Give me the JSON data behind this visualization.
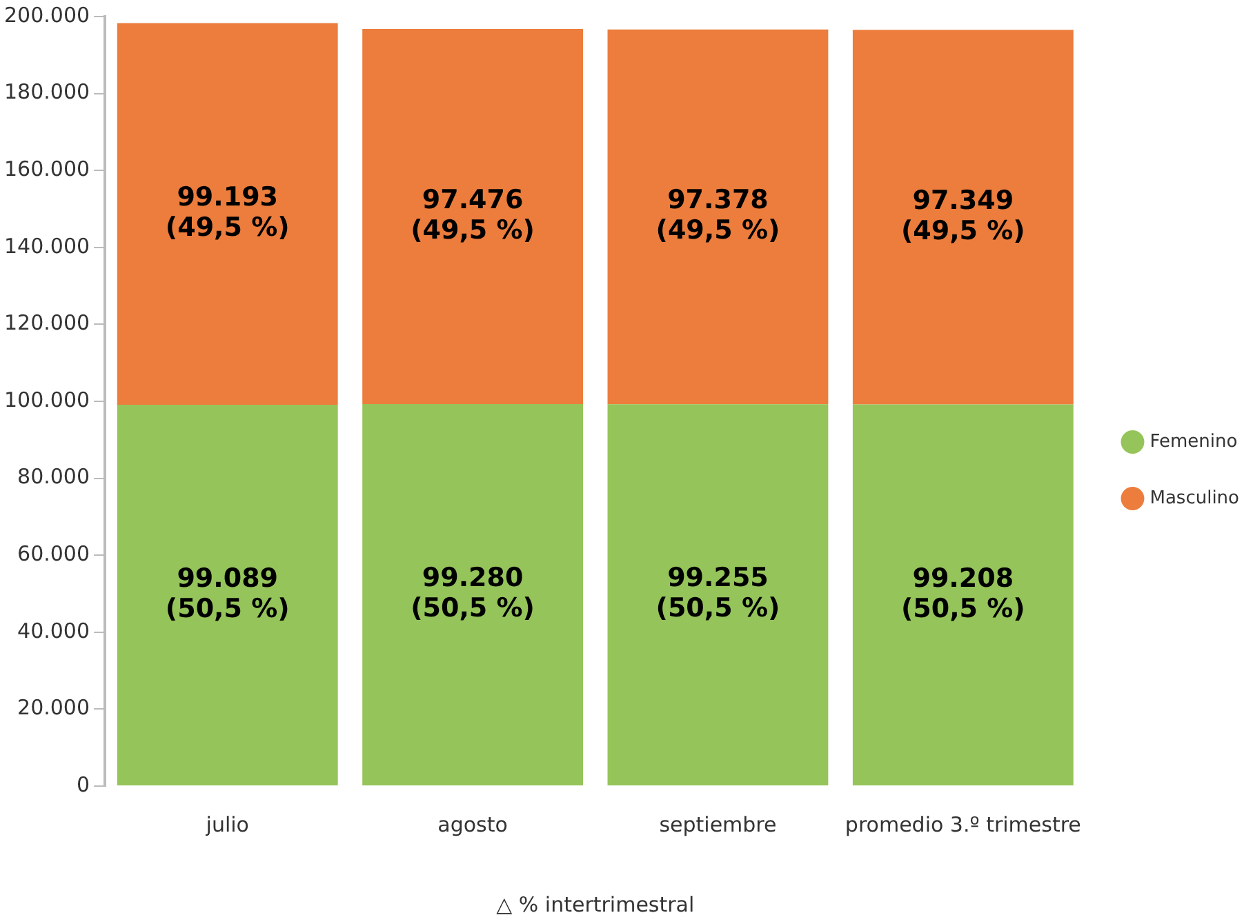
{
  "chart_data": {
    "type": "bar",
    "stacked": true,
    "xlabel": "△ % intertrimestral",
    "categories": [
      "julio",
      "agosto",
      "septiembre",
      "promedio 3.º trimestre"
    ],
    "series": [
      {
        "name": "Femenino",
        "color": "#95c45a",
        "values": [
          99089,
          99280,
          99255,
          99208
        ],
        "value_labels": [
          "99.089\n(50,5 %)",
          "99.280\n(50,5 %)",
          "99.255\n(50,5 %)",
          "99.208\n(50,5 %)"
        ]
      },
      {
        "name": "Masculino",
        "color": "#ec7d3d",
        "values": [
          99193,
          97476,
          97378,
          97349
        ],
        "value_labels": [
          "99.193\n(49,5 %)",
          "97.476\n(49,5 %)",
          "97.378\n(49,5 %)",
          "97.349\n(49,5 %)"
        ]
      }
    ],
    "ylim": [
      0,
      200000
    ],
    "yticks": [
      {
        "value": 0,
        "label": "0"
      },
      {
        "value": 20000,
        "label": "20.000"
      },
      {
        "value": 40000,
        "label": "40.000"
      },
      {
        "value": 60000,
        "label": "60.000"
      },
      {
        "value": 80000,
        "label": "80.000"
      },
      {
        "value": 100000,
        "label": "100.000"
      },
      {
        "value": 120000,
        "label": "120.000"
      },
      {
        "value": 140000,
        "label": "140.000"
      },
      {
        "value": 160000,
        "label": "160.000"
      },
      {
        "value": 180000,
        "label": "180.000"
      },
      {
        "value": 200000,
        "label": "200.000"
      }
    ],
    "grid": false,
    "legend": "right"
  }
}
